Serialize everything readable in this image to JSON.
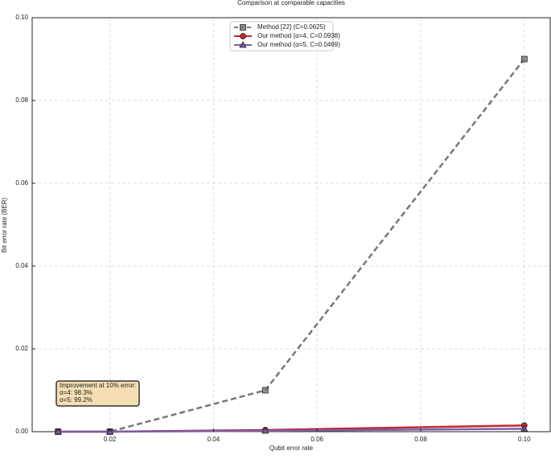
{
  "chart_data": {
    "type": "line",
    "title": "Comparison at comparable capacities",
    "xlabel": "Qubit error rate",
    "ylabel": "Bit error rate (BER)",
    "x": [
      0.01,
      0.02,
      0.05,
      0.1
    ],
    "series": [
      {
        "name": "Method [22] (C=0.0625)",
        "color": "#777777",
        "marker": "square",
        "dash": true,
        "values": [
          0,
          0,
          0.01,
          0.09
        ]
      },
      {
        "name": "Our method (α=4, C=0.0938)",
        "color": "#c0282d",
        "marker": "circle",
        "dash": false,
        "values": [
          0,
          0,
          0.0004,
          0.0015
        ]
      },
      {
        "name": "Our method (α=5, C=0.0469)",
        "color": "#7b5ea7",
        "marker": "triangle",
        "dash": false,
        "values": [
          0,
          0,
          0.0002,
          0.0007
        ]
      }
    ],
    "xlim": [
      0.005,
      0.105
    ],
    "ylim": [
      0,
      0.1
    ],
    "xticks": [
      {
        "value": 0.02,
        "label": "0.02"
      },
      {
        "value": 0.04,
        "label": "0.04"
      },
      {
        "value": 0.06,
        "label": "0.06"
      },
      {
        "value": 0.08,
        "label": "0.08"
      },
      {
        "value": 0.1,
        "label": "0.10"
      }
    ],
    "yticks": [
      {
        "value": 0,
        "label": "0.00"
      },
      {
        "value": 0.02,
        "label": "0.02"
      },
      {
        "value": 0.04,
        "label": "0.04"
      },
      {
        "value": 0.06,
        "label": "0.06"
      },
      {
        "value": 0.08,
        "label": "0.08"
      },
      {
        "value": 0.1,
        "label": "0.10"
      }
    ],
    "grid": true,
    "legend": "upper center",
    "annotation": [
      "Improvement at 10% error:",
      "α=4: 98.3%",
      "α=5: 99.2%"
    ]
  }
}
